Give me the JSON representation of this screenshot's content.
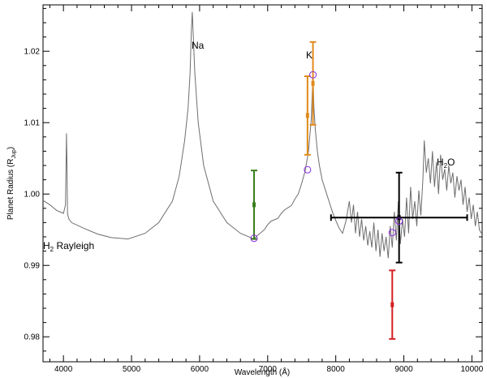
{
  "chart_data": {
    "type": "line",
    "xlabel": "Wavelength (Å)",
    "ylabel": "Planet Radius (R",
    "ylabel_sub": "Jup",
    "ylabel_close": ")",
    "xlim": [
      3700,
      10150
    ],
    "ylim": [
      0.9765,
      1.0265
    ],
    "xticks": [
      4000,
      5000,
      6000,
      7000,
      8000,
      9000,
      10000
    ],
    "yticks": [
      0.98,
      0.99,
      1.0,
      1.01,
      1.02
    ],
    "ytick_labels": [
      "0.98",
      "0.99",
      "1.00",
      "1.01",
      "1.02"
    ],
    "grid": false,
    "model": {
      "color": "#6e6e6e",
      "x": [
        3700,
        3800,
        3900,
        4000,
        4030,
        4045,
        4052,
        4060,
        4080,
        4120,
        4300,
        4500,
        4700,
        4950,
        5200,
        5400,
        5600,
        5700,
        5780,
        5830,
        5860,
        5880,
        5893,
        5905,
        5930,
        5980,
        6060,
        6200,
        6400,
        6600,
        6750,
        6800,
        6850,
        6900,
        6950,
        7000,
        7050,
        7100,
        7150,
        7200,
        7250,
        7300,
        7350,
        7400,
        7450,
        7500,
        7550,
        7600,
        7640,
        7665,
        7680,
        7700,
        7730,
        7760,
        7800,
        7850,
        7900,
        7950,
        8000,
        8050,
        8100,
        8150,
        8200,
        8230,
        8260,
        8290,
        8320,
        8350,
        8380,
        8410,
        8440,
        8470,
        8500,
        8530,
        8560,
        8590,
        8620,
        8650,
        8680,
        8710,
        8740,
        8770,
        8800,
        8830,
        8860,
        8890,
        8920,
        8950,
        8980,
        9010,
        9040,
        9070,
        9100,
        9130,
        9160,
        9190,
        9220,
        9250,
        9280,
        9300,
        9330,
        9360,
        9390,
        9420,
        9450,
        9480,
        9510,
        9540,
        9570,
        9600,
        9630,
        9660,
        9690,
        9720,
        9750,
        9780,
        9810,
        9840,
        9870,
        9900,
        9930,
        9960,
        9990,
        10020,
        10050,
        10080,
        10110,
        10140
      ],
      "y": [
        0.9991,
        0.9985,
        0.9977,
        0.9973,
        0.9985,
        1.0085,
        1.0045,
        0.9972,
        0.9965,
        0.996,
        0.9952,
        0.9944,
        0.9939,
        0.9937,
        0.9945,
        0.996,
        0.999,
        1.0025,
        1.0075,
        1.012,
        1.017,
        1.023,
        1.0255,
        1.0228,
        1.017,
        1.01,
        1.004,
        0.999,
        0.996,
        0.9945,
        0.9939,
        0.9937,
        0.9942,
        0.9946,
        0.995,
        0.9957,
        0.9962,
        0.9964,
        0.9966,
        0.9973,
        0.9978,
        0.9981,
        0.9984,
        0.9993,
        1.0,
        1.0015,
        1.0032,
        1.006,
        1.0105,
        1.0168,
        1.012,
        1.009,
        1.006,
        1.004,
        1.002,
        1.0005,
        0.999,
        0.9975,
        0.9963,
        0.9952,
        0.9945,
        0.9962,
        0.999,
        0.996,
        0.9985,
        0.9945,
        0.9975,
        0.994,
        0.9965,
        0.9935,
        0.9955,
        0.9928,
        0.9948,
        0.9925,
        0.996,
        0.992,
        0.995,
        0.9912,
        0.9945,
        0.992,
        0.994,
        0.991,
        0.9955,
        0.9925,
        0.9975,
        0.9935,
        0.999,
        0.993,
        0.9965,
        0.994,
        0.9995,
        0.9945,
        1.001,
        0.9965,
        0.999,
        0.9955,
        1.0005,
        0.997,
        1.002,
        1.0075,
        1.003,
        1.005,
        1.0015,
        1.006,
        1.001,
        1.0045,
        1.0,
        1.0055,
        1.002,
        1.0035,
        1.0005,
        1.004,
        1.0015,
        1.003,
        0.9995,
        1.0025,
        1.0005,
        1.002,
        0.9985,
        1.001,
        0.9975,
        0.9995,
        0.9965,
        0.9985,
        0.9955,
        0.9975,
        0.995,
        0.9945
      ]
    },
    "data_points": [
      {
        "x": 6800,
        "y": 0.9985,
        "yerr": 0.0048,
        "xerr": 0,
        "color": "#3a7d1e"
      },
      {
        "x": 7585,
        "y": 1.011,
        "yerr": 0.0055,
        "xerr": 0,
        "color": "#e08a1c"
      },
      {
        "x": 7665,
        "y": 1.0155,
        "yerr": 0.0058,
        "xerr": 0,
        "color": "#e08a1c"
      },
      {
        "x": 8830,
        "y": 0.9845,
        "yerr": 0.0048,
        "xerr": 0,
        "color": "#d42020"
      },
      {
        "x": 8930,
        "y": 0.9967,
        "yerr": 0.0063,
        "xerr": 1000,
        "color": "#000000"
      }
    ],
    "model_binned": {
      "color": "#8a2be2",
      "x": [
        6800,
        7585,
        7665,
        8830,
        8930
      ],
      "y": [
        0.9938,
        1.0034,
        1.0167,
        0.9946,
        0.9962
      ]
    },
    "annotations": {
      "na": "Na",
      "k": "K",
      "h2o_pre": "H",
      "h2o_sub": "2",
      "h2o_post": "O",
      "rayleigh_pre": "H",
      "rayleigh_sub": "2",
      "rayleigh_post": " Rayleigh"
    }
  }
}
